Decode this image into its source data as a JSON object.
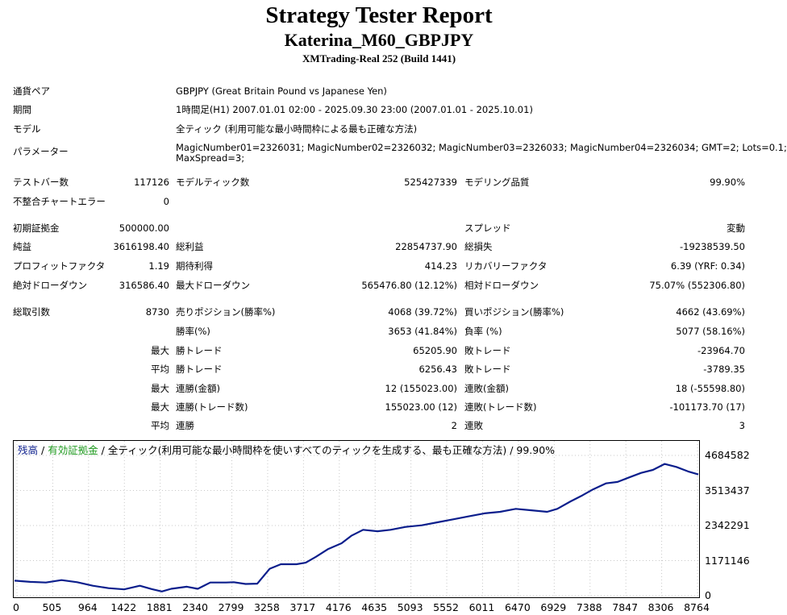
{
  "header": {
    "title": "Strategy Tester Report",
    "expert": "Katerina_M60_GBPJPY",
    "server": "XMTrading-Real 252 (Build 1441)"
  },
  "settings": {
    "symbol_label": "通貨ペア",
    "symbol_value": "GBPJPY (Great Britain Pound vs Japanese Yen)",
    "period_label": "期間",
    "period_value": "1時間足(H1) 2007.01.01 02:00 - 2025.09.30 23:00 (2007.01.01 - 2025.10.01)",
    "model_label": "モデル",
    "model_value": "全ティック (利用可能な最小時間枠による最も正確な方法)",
    "params_label": "パラメーター",
    "params_line1": "MagicNumber01=2326031; MagicNumber02=2326032; MagicNumber03=2326033; MagicNumber04=2326034; GMT=2; Lots=0.1;",
    "params_line2": "MaxSpread=3;"
  },
  "stats": {
    "bars_label": "テストバー数",
    "bars_value": "117126",
    "ticks_label": "モデルティック数",
    "ticks_value": "525427339",
    "quality_label": "モデリング品質",
    "quality_value": "99.90%",
    "mismatch_label": "不整合チャートエラー",
    "mismatch_value": "0",
    "deposit_label": "初期証拠金",
    "deposit_value": "500000.00",
    "spread_label": "スプレッド",
    "spread_value": "変動",
    "net_label": "純益",
    "net_value": "3616198.40",
    "gross_profit_label": "総利益",
    "gross_profit_value": "22854737.90",
    "gross_loss_label": "総損失",
    "gross_loss_value": "-19238539.50",
    "pf_label": "プロフィットファクタ",
    "pf_value": "1.19",
    "payoff_label": "期待利得",
    "payoff_value": "414.23",
    "recovery_label": "リカバリーファクタ",
    "recovery_value": "6.39 (YRF: 0.34)",
    "abs_dd_label": "絶対ドローダウン",
    "abs_dd_value": "316586.40",
    "max_dd_label": "最大ドローダウン",
    "max_dd_value": "565476.80 (12.12%)",
    "rel_dd_label": "相対ドローダウン",
    "rel_dd_value": "75.07% (552306.80)",
    "trades_label": "総取引数",
    "trades_value": "8730",
    "short_label": "売りポジション(勝率%)",
    "short_value": "4068 (39.72%)",
    "long_label": "買いポジション(勝率%)",
    "long_value": "4662 (43.69%)",
    "win_label": "勝率(%)",
    "win_value": "3653 (41.84%)",
    "loss_label": "負率 (%)",
    "loss_value": "5077 (58.16%)",
    "max_label": "最大",
    "avg_label": "平均",
    "largest_win_label": "勝トレード",
    "largest_win_value": "65205.90",
    "largest_loss_label": "敗トレード",
    "largest_loss_value": "-23964.70",
    "avg_win_label": "勝トレード",
    "avg_win_value": "6256.43",
    "avg_loss_label": "敗トレード",
    "avg_loss_value": "-3789.35",
    "max_cons_wins_label": "連勝(金額)",
    "max_cons_wins_value": "12 (155023.00)",
    "max_cons_losses_label": "連敗(金額)",
    "max_cons_losses_value": "18 (-55598.80)",
    "max_cons_profit_label": "連勝(トレード数)",
    "max_cons_profit_value": "155023.00 (12)",
    "max_cons_loss_label": "連敗(トレード数)",
    "max_cons_loss_value": "-101173.70 (17)",
    "avg_cons_wins_label": "連勝",
    "avg_cons_wins_value": "2",
    "avg_cons_losses_label": "連敗",
    "avg_cons_losses_value": "3"
  },
  "legend": {
    "balance": "残高",
    "sep1": " / ",
    "equity": "有効証拠金",
    "rest": " / 全ティック(利用可能な最小時間枠を使いすべてのティックを生成する、最も正確な方法) / 99.90%"
  },
  "colors": {
    "balance": "#0b1e8c",
    "equity": "#1f9a1f",
    "grid": "#c8c8c8"
  },
  "chart_data": {
    "type": "line",
    "y_ticks": [
      "4684582",
      "3513437",
      "2342291",
      "1171146",
      "0"
    ],
    "x_ticks": [
      "0",
      "505",
      "964",
      "1422",
      "1881",
      "2340",
      "2799",
      "3258",
      "3717",
      "4176",
      "4635",
      "5093",
      "5552",
      "6011",
      "6470",
      "6929",
      "7388",
      "7847",
      "8306",
      "8764"
    ],
    "ylim": [
      0,
      4684582
    ],
    "xlim": [
      0,
      8730
    ],
    "series": [
      {
        "name": "残高",
        "x": [
          0,
          200,
          400,
          600,
          800,
          1000,
          1200,
          1400,
          1600,
          1750,
          1881,
          2000,
          2200,
          2340,
          2500,
          2700,
          2799,
          2950,
          3100,
          3258,
          3400,
          3600,
          3717,
          3850,
          4000,
          4176,
          4300,
          4450,
          4635,
          4800,
          5000,
          5200,
          5400,
          5600,
          5800,
          6000,
          6200,
          6400,
          6600,
          6800,
          6929,
          7100,
          7250,
          7388,
          7550,
          7700,
          7847,
          8000,
          8150,
          8300,
          8450,
          8600,
          8730
        ],
        "y": [
          500000,
          460000,
          440000,
          520000,
          450000,
          330000,
          250000,
          210000,
          330000,
          220000,
          140000,
          230000,
          300000,
          230000,
          440000,
          440000,
          450000,
          390000,
          400000,
          900000,
          1050000,
          1050000,
          1100000,
          1300000,
          1550000,
          1750000,
          2000000,
          2200000,
          2150000,
          2200000,
          2300000,
          2350000,
          2450000,
          2550000,
          2650000,
          2750000,
          2800000,
          2900000,
          2850000,
          2800000,
          2900000,
          3150000,
          3350000,
          3550000,
          3750000,
          3800000,
          3950000,
          4100000,
          4200000,
          4400000,
          4300000,
          4150000,
          4050000
        ]
      }
    ]
  }
}
